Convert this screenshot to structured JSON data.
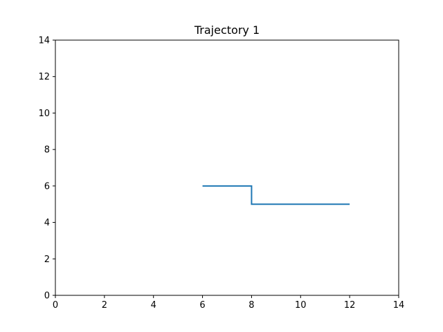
{
  "chart_data": {
    "type": "line",
    "title": "Trajectory 1",
    "xlabel": "",
    "ylabel": "",
    "xlim": [
      0,
      14
    ],
    "ylim": [
      0,
      14
    ],
    "xticks": [
      0,
      2,
      4,
      6,
      8,
      10,
      12,
      14
    ],
    "yticks": [
      0,
      2,
      4,
      6,
      8,
      10,
      12,
      14
    ],
    "xtick_labels": [
      "0",
      "2",
      "4",
      "6",
      "8",
      "10",
      "12",
      "14"
    ],
    "ytick_labels": [
      "0",
      "2",
      "4",
      "6",
      "8",
      "10",
      "12",
      "14"
    ],
    "grid": false,
    "series": [
      {
        "color": "#1f77b4",
        "x": [
          6,
          8,
          8,
          12
        ],
        "y": [
          6,
          6,
          5,
          5
        ]
      }
    ]
  }
}
